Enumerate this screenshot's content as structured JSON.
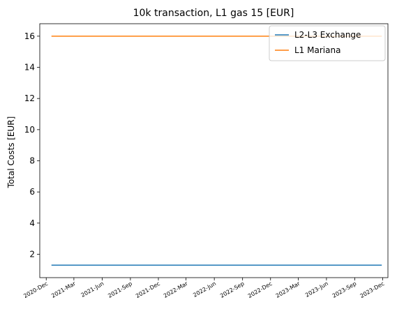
{
  "chart_data": {
    "type": "line",
    "title": "10k transaction, L1 gas 15 [EUR]",
    "xlabel": "",
    "ylabel": "Total Costs [EUR]",
    "ylim": [
      0.5,
      16.8
    ],
    "yticks": [
      2,
      4,
      6,
      8,
      10,
      12,
      14,
      16
    ],
    "ytick_labels": [
      "2",
      "4",
      "6",
      "8",
      "10",
      "12",
      "14",
      "16"
    ],
    "xlim": [
      "2020-11-10",
      "2023-12-18"
    ],
    "xticks": [
      "2020-12-01",
      "2021-03-01",
      "2021-06-01",
      "2021-09-01",
      "2021-12-01",
      "2022-03-01",
      "2022-06-01",
      "2022-09-01",
      "2022-12-01",
      "2023-03-01",
      "2023-06-01",
      "2023-09-01",
      "2023-12-01"
    ],
    "xtick_labels": [
      "2020-Dec",
      "2021-Mar",
      "2021-Jun",
      "2021-Sep",
      "2021-Dec",
      "2022-Mar",
      "2022-Jun",
      "2022-Sep",
      "2022-Dec",
      "2023-Mar",
      "2023-Jun",
      "2023-Sep",
      "2023-Dec"
    ],
    "x_tick_rotation": 30,
    "grid": false,
    "legend": "top-right",
    "series": [
      {
        "name": "L2-L3 Exchange",
        "color": "#1f77b4",
        "x": [
          "2020-12-18",
          "2023-11-28"
        ],
        "y": [
          1.3,
          1.3
        ]
      },
      {
        "name": "L1 Mariana",
        "color": "#ff7f0e",
        "x": [
          "2020-12-18",
          "2023-11-28"
        ],
        "y": [
          16.0,
          16.0
        ]
      }
    ]
  }
}
